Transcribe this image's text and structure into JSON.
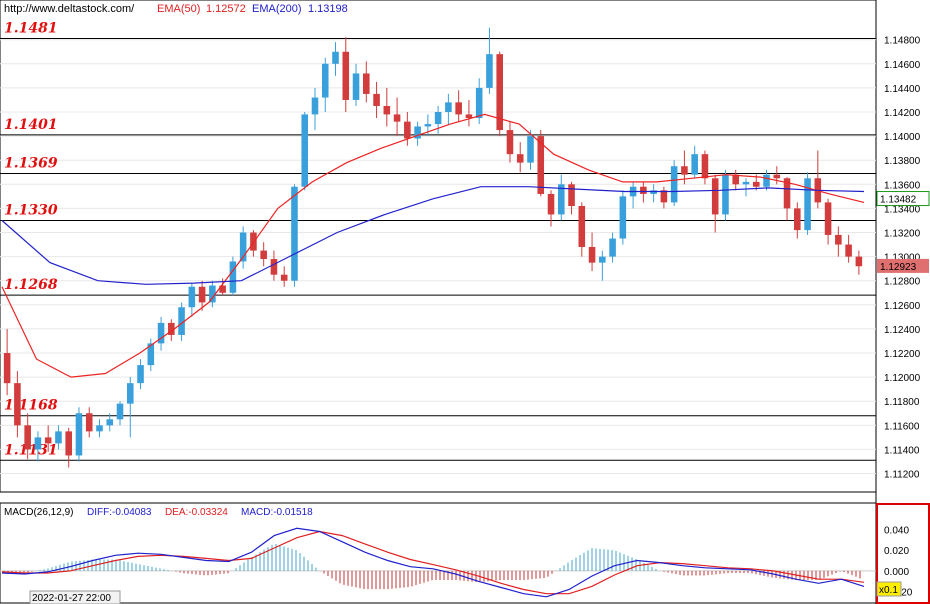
{
  "header": {
    "url": "http://www.deltastock.com/",
    "ema50_label": "EMA(50)",
    "ema50_value": "1.12572",
    "ema200_label": "EMA(200)",
    "ema200_value": "1.13198"
  },
  "colors": {
    "candle_up": "#3aa0dc",
    "candle_down": "#d23c3c",
    "ema50": "#ee2222",
    "ema200": "#2222cc",
    "level_text": "#e01010",
    "grid": "#e8e8e8",
    "last_price_bg": "#e07070",
    "ema200_box": "#1a9a1a"
  },
  "price_axis": {
    "ticks": [
      "1.14800",
      "1.14600",
      "1.14400",
      "1.14200",
      "1.14000",
      "1.13800",
      "1.13600",
      "1.13400",
      "1.13200",
      "1.13000",
      "1.12800",
      "1.12600",
      "1.12400",
      "1.12200",
      "1.12000",
      "1.11800",
      "1.11600",
      "1.11400",
      "1.11200"
    ],
    "ema200_marker": "1.13482",
    "last_price_marker": "1.12923"
  },
  "levels": [
    "1.1481",
    "1.1401",
    "1.1369",
    "1.1330",
    "1.1268",
    "1.1168",
    "1.1131"
  ],
  "macd": {
    "title": "MACD(26,12,9)",
    "diff": "DIFF:-0.04083",
    "dea": "DEA:-0.03324",
    "macd": "MACD:-0.01518",
    "ticks": [
      "0.040",
      "0.020",
      "0.000",
      "-0.020"
    ],
    "scale_badge": "x0.1"
  },
  "footer": {
    "date_label": "2022-01-27 22:00"
  },
  "chart_data": {
    "type": "candlestick",
    "title": "",
    "ylim": [
      1.1108,
      1.1498
    ],
    "horizontal_levels": [
      1.1481,
      1.1401,
      1.1369,
      1.133,
      1.1268,
      1.1168,
      1.1131
    ],
    "series": [
      {
        "name": "EMA(50)",
        "type": "line",
        "values": [
          1.1275,
          1.1215,
          1.12,
          1.1203,
          1.122,
          1.124,
          1.1262,
          1.13,
          1.134,
          1.1362,
          1.1378,
          1.139,
          1.14,
          1.141,
          1.1418,
          1.141,
          1.1385,
          1.1372,
          1.1362,
          1.1362,
          1.1365,
          1.1368,
          1.1366,
          1.136,
          1.1352,
          1.1345
        ]
      },
      {
        "name": "EMA(200)",
        "type": "line",
        "values": [
          1.133,
          1.1295,
          1.128,
          1.1277,
          1.1278,
          1.128,
          1.13,
          1.132,
          1.1335,
          1.1348,
          1.1358,
          1.1358,
          1.1356,
          1.1354,
          1.1354,
          1.1355,
          1.1357,
          1.1355,
          1.1354
        ]
      }
    ],
    "candles": [
      [
        1.122,
        1.124,
        1.1185,
        1.1195
      ],
      [
        1.1195,
        1.1205,
        1.115,
        1.116
      ],
      [
        1.116,
        1.117,
        1.1132,
        1.114
      ],
      [
        1.114,
        1.1155,
        1.113,
        1.115
      ],
      [
        1.115,
        1.116,
        1.1138,
        1.1145
      ],
      [
        1.1145,
        1.116,
        1.114,
        1.1155
      ],
      [
        1.1155,
        1.1158,
        1.1125,
        1.1135
      ],
      [
        1.1135,
        1.1175,
        1.113,
        1.117
      ],
      [
        1.117,
        1.1175,
        1.115,
        1.1155
      ],
      [
        1.1155,
        1.1165,
        1.115,
        1.116
      ],
      [
        1.116,
        1.117,
        1.1155,
        1.1165
      ],
      [
        1.1165,
        1.118,
        1.116,
        1.1178
      ],
      [
        1.1178,
        1.12,
        1.115,
        1.1195
      ],
      [
        1.1195,
        1.1215,
        1.119,
        1.121
      ],
      [
        1.121,
        1.1232,
        1.1205,
        1.1228
      ],
      [
        1.1228,
        1.125,
        1.1222,
        1.1245
      ],
      [
        1.1245,
        1.1248,
        1.123,
        1.1235
      ],
      [
        1.1235,
        1.1262,
        1.123,
        1.1258
      ],
      [
        1.1258,
        1.1278,
        1.125,
        1.1275
      ],
      [
        1.1275,
        1.128,
        1.1255,
        1.1262
      ],
      [
        1.1262,
        1.128,
        1.1258,
        1.1276
      ],
      [
        1.1276,
        1.1282,
        1.1268,
        1.127
      ],
      [
        1.127,
        1.13,
        1.1268,
        1.1296
      ],
      [
        1.1296,
        1.1325,
        1.129,
        1.132
      ],
      [
        1.132,
        1.1322,
        1.13,
        1.1305
      ],
      [
        1.1305,
        1.1312,
        1.1292,
        1.1298
      ],
      [
        1.1298,
        1.1305,
        1.128,
        1.1285
      ],
      [
        1.1285,
        1.1292,
        1.1275,
        1.128
      ],
      [
        1.128,
        1.136,
        1.1275,
        1.1358
      ],
      [
        1.1358,
        1.142,
        1.1355,
        1.1418
      ],
      [
        1.1418,
        1.144,
        1.1405,
        1.1432
      ],
      [
        1.1432,
        1.1465,
        1.142,
        1.146
      ],
      [
        1.146,
        1.1478,
        1.145,
        1.147
      ],
      [
        1.147,
        1.1482,
        1.142,
        1.143
      ],
      [
        1.143,
        1.146,
        1.1425,
        1.1452
      ],
      [
        1.1452,
        1.1462,
        1.1428,
        1.1435
      ],
      [
        1.1435,
        1.1445,
        1.1415,
        1.1425
      ],
      [
        1.1425,
        1.144,
        1.1408,
        1.1418
      ],
      [
        1.1418,
        1.1432,
        1.14,
        1.1412
      ],
      [
        1.1412,
        1.142,
        1.1392,
        1.1398
      ],
      [
        1.1398,
        1.1412,
        1.1392,
        1.1408
      ],
      [
        1.1408,
        1.1418,
        1.14,
        1.141
      ],
      [
        1.141,
        1.1425,
        1.1402,
        1.142
      ],
      [
        1.142,
        1.1435,
        1.141,
        1.1428
      ],
      [
        1.1428,
        1.1438,
        1.1412,
        1.1418
      ],
      [
        1.1418,
        1.143,
        1.1408,
        1.1415
      ],
      [
        1.1415,
        1.1448,
        1.141,
        1.144
      ],
      [
        1.144,
        1.149,
        1.1435,
        1.1468
      ],
      [
        1.1468,
        1.147,
        1.14,
        1.1405
      ],
      [
        1.1405,
        1.1412,
        1.1378,
        1.1385
      ],
      [
        1.1385,
        1.1395,
        1.137,
        1.1378
      ],
      [
        1.1378,
        1.1405,
        1.1372,
        1.14
      ],
      [
        1.14,
        1.1405,
        1.135,
        1.1352
      ],
      [
        1.1352,
        1.1355,
        1.1325,
        1.1335
      ],
      [
        1.1335,
        1.1368,
        1.133,
        1.136
      ],
      [
        1.136,
        1.1362,
        1.1335,
        1.1342
      ],
      [
        1.1342,
        1.1345,
        1.13,
        1.1308
      ],
      [
        1.1308,
        1.132,
        1.1288,
        1.1295
      ],
      [
        1.1295,
        1.1305,
        1.128,
        1.13
      ],
      [
        1.13,
        1.132,
        1.1295,
        1.1315
      ],
      [
        1.1315,
        1.1355,
        1.131,
        1.135
      ],
      [
        1.135,
        1.1362,
        1.134,
        1.1358
      ],
      [
        1.1358,
        1.1362,
        1.1345,
        1.1352
      ],
      [
        1.1352,
        1.136,
        1.1345,
        1.1355
      ],
      [
        1.1355,
        1.1358,
        1.134,
        1.1345
      ],
      [
        1.1345,
        1.138,
        1.1342,
        1.1375
      ],
      [
        1.1375,
        1.1388,
        1.136,
        1.1368
      ],
      [
        1.1368,
        1.1392,
        1.1365,
        1.1385
      ],
      [
        1.1385,
        1.1388,
        1.136,
        1.1365
      ],
      [
        1.1365,
        1.1368,
        1.132,
        1.1335
      ],
      [
        1.1335,
        1.1372,
        1.133,
        1.1368
      ],
      [
        1.1368,
        1.1372,
        1.1355,
        1.136
      ],
      [
        1.136,
        1.1365,
        1.135,
        1.1362
      ],
      [
        1.1362,
        1.1368,
        1.1355,
        1.1358
      ],
      [
        1.1358,
        1.1372,
        1.1355,
        1.1368
      ],
      [
        1.1368,
        1.1375,
        1.136,
        1.1365
      ],
      [
        1.1365,
        1.1366,
        1.133,
        1.134
      ],
      [
        1.134,
        1.1345,
        1.1315,
        1.1322
      ],
      [
        1.1322,
        1.137,
        1.1318,
        1.1365
      ],
      [
        1.1365,
        1.1388,
        1.134,
        1.1345
      ],
      [
        1.1345,
        1.1348,
        1.131,
        1.1318
      ],
      [
        1.1318,
        1.1325,
        1.13,
        1.131
      ],
      [
        1.131,
        1.1318,
        1.1295,
        1.13
      ],
      [
        1.13,
        1.1305,
        1.1285,
        1.1292
      ]
    ],
    "macd_panel": {
      "ylim": [
        -0.03,
        0.05
      ],
      "diff": [
        -0.002,
        -0.003,
        -0.001,
        0.004,
        0.01,
        0.015,
        0.017,
        0.016,
        0.013,
        0.01,
        0.009,
        0.018,
        0.034,
        0.041,
        0.038,
        0.028,
        0.018,
        0.01,
        0.004,
        0.002,
        -0.003,
        -0.01,
        -0.016,
        -0.022,
        -0.025,
        -0.018,
        -0.005,
        0.005,
        0.01,
        0.008,
        0.005,
        0.003,
        0.002,
        0.001,
        -0.003,
        -0.008,
        -0.012,
        -0.008,
        -0.015
      ],
      "dea": [
        -0.001,
        -0.002,
        -0.002,
        0.0,
        0.005,
        0.01,
        0.014,
        0.015,
        0.014,
        0.012,
        0.01,
        0.012,
        0.022,
        0.032,
        0.038,
        0.034,
        0.026,
        0.018,
        0.011,
        0.006,
        0.001,
        -0.005,
        -0.012,
        -0.018,
        -0.022,
        -0.022,
        -0.015,
        -0.004,
        0.005,
        0.008,
        0.007,
        0.005,
        0.003,
        0.002,
        0.0,
        -0.004,
        -0.008,
        -0.008,
        -0.011
      ]
    }
  }
}
